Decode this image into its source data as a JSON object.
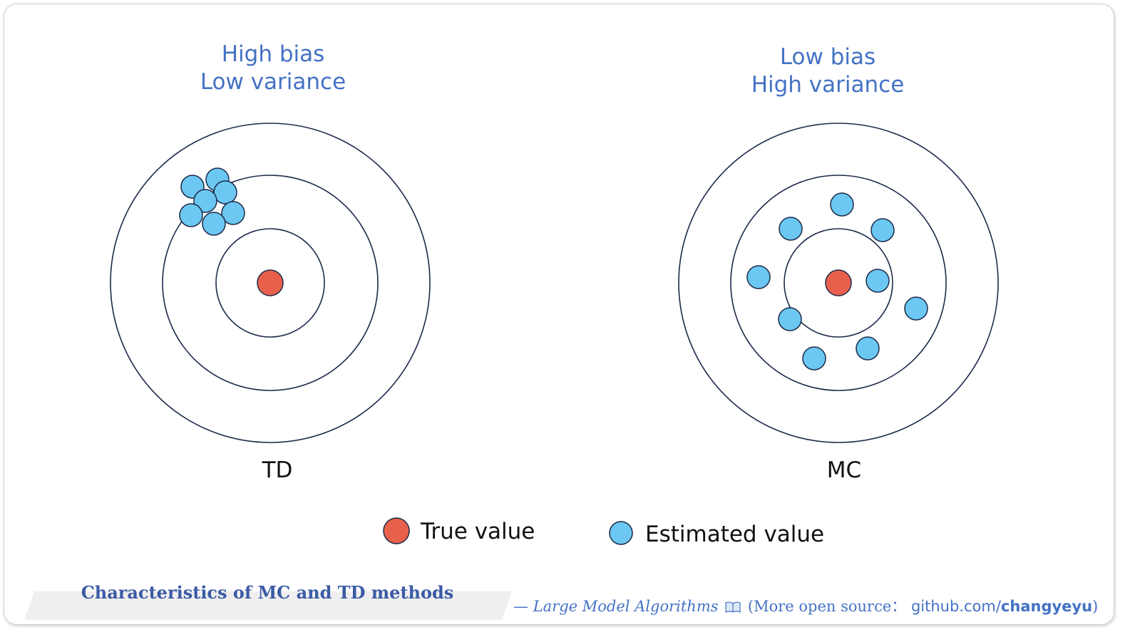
{
  "panels": [
    {
      "id": "td",
      "heading": [
        "High bias",
        "Low variance"
      ],
      "method_label": "TD",
      "center": [
        379,
        397
      ],
      "ring_radii": [
        224,
        151,
        76
      ],
      "estimates": [
        [
          305,
          252
        ],
        [
          270,
          262
        ],
        [
          316,
          270
        ],
        [
          288,
          282
        ],
        [
          268,
          302
        ],
        [
          327,
          299
        ],
        [
          300,
          314
        ]
      ]
    },
    {
      "id": "mc",
      "heading": [
        "Low bias",
        "High variance"
      ],
      "method_label": "MC",
      "center": [
        1176,
        397
      ],
      "ring_radii": [
        224,
        151,
        76
      ],
      "estimates": [
        [
          1181,
          287
        ],
        [
          1109,
          321
        ],
        [
          1238,
          323
        ],
        [
          1064,
          389
        ],
        [
          1231,
          394
        ],
        [
          1285,
          433
        ],
        [
          1108,
          448
        ],
        [
          1217,
          489
        ],
        [
          1142,
          503
        ]
      ]
    }
  ],
  "legend": {
    "true_value_label": "True value",
    "estimated_value_label": "Estimated value"
  },
  "colors": {
    "ring": "#1b2a4a",
    "true_value": "#e8604c",
    "estimated_value": "#6cc8f2",
    "heading": "#4472c4"
  },
  "caption": {
    "title": "Characteristics of MC and TD methods",
    "credit_prefix": "—",
    "book_title": "Large Model Algorithms",
    "book_icon": "open-book-icon",
    "more_text": "(More open source：",
    "repo_host": "github.com/",
    "repo_user": "changyeyu",
    "suffix": ")"
  }
}
